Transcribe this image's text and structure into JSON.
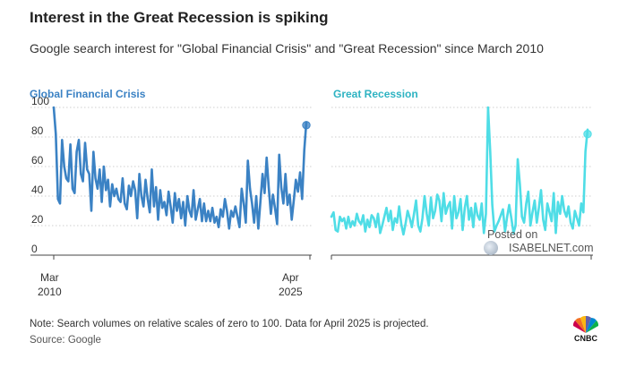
{
  "header": {
    "title": "Interest in the Great Recession is spiking",
    "subtitle": "Google search interest for \"Global Financial Crisis\" and \"Great Recession\" since March 2010"
  },
  "x_axis": {
    "start_month": "Mar",
    "start_year": "2010",
    "end_month": "Apr",
    "end_year": "2025"
  },
  "footer": {
    "note": "Note: Search volumes on relative scales of zero to 100. Data for April 2025 is projected.",
    "source": "Source: Google"
  },
  "watermark": {
    "line1": "Posted on",
    "line2": "ISABELNET.com"
  },
  "logo": {
    "text": "CNBC"
  },
  "colors": {
    "gfc": "#3b82c4",
    "gr": "#4fdde6",
    "grid": "#cfcfcf"
  },
  "chart_data": [
    {
      "type": "line",
      "title": "Global Financial Crisis",
      "yticks": [
        0,
        20,
        40,
        60,
        80,
        100
      ],
      "ylim": [
        0,
        100
      ],
      "x_start": "Mar 2010",
      "x_end": "Apr 2025",
      "values": [
        100,
        82,
        38,
        35,
        78,
        60,
        52,
        50,
        75,
        45,
        42,
        70,
        78,
        55,
        50,
        76,
        58,
        55,
        30,
        70,
        52,
        45,
        58,
        36,
        60,
        44,
        51,
        33,
        48,
        40,
        45,
        38,
        36,
        52,
        35,
        31,
        47,
        40,
        50,
        44,
        25,
        55,
        40,
        33,
        51,
        38,
        29,
        58,
        33,
        46,
        24,
        44,
        32,
        36,
        27,
        43,
        33,
        22,
        42,
        30,
        38,
        25,
        36,
        20,
        40,
        30,
        26,
        44,
        24,
        31,
        38,
        23,
        35,
        23,
        30,
        23,
        32,
        22,
        26,
        19,
        31,
        26,
        38,
        30,
        18,
        30,
        26,
        33,
        26,
        19,
        45,
        35,
        22,
        64,
        45,
        35,
        22,
        40,
        18,
        36,
        55,
        42,
        66,
        46,
        28,
        41,
        32,
        21,
        68,
        46,
        35,
        55,
        34,
        41,
        24,
        37,
        51,
        43,
        56,
        38,
        71,
        90
      ],
      "endpoint_marker": 88
    },
    {
      "type": "line",
      "title": "Great Recession",
      "ylim": [
        0,
        100
      ],
      "values": [
        26,
        29,
        17,
        16,
        26,
        23,
        25,
        18,
        26,
        19,
        23,
        20,
        28,
        23,
        21,
        27,
        16,
        24,
        19,
        27,
        25,
        19,
        28,
        15,
        20,
        26,
        32,
        23,
        30,
        17,
        25,
        22,
        33,
        21,
        14,
        21,
        30,
        25,
        19,
        28,
        37,
        20,
        16,
        25,
        40,
        28,
        20,
        39,
        25,
        30,
        41,
        37,
        23,
        42,
        28,
        33,
        36,
        18,
        40,
        25,
        29,
        38,
        17,
        32,
        40,
        24,
        32,
        19,
        35,
        27,
        24,
        35,
        15,
        28,
        100,
        70,
        34,
        16,
        20,
        23,
        27,
        31,
        16,
        26,
        34,
        25,
        15,
        20,
        65,
        48,
        26,
        22,
        35,
        43,
        20,
        29,
        37,
        22,
        32,
        44,
        24,
        17,
        35,
        29,
        23,
        42,
        15,
        36,
        28,
        40,
        30,
        26,
        33,
        22,
        18,
        30,
        25,
        20,
        35,
        29,
        70,
        85
      ],
      "endpoint_marker": 82
    }
  ]
}
